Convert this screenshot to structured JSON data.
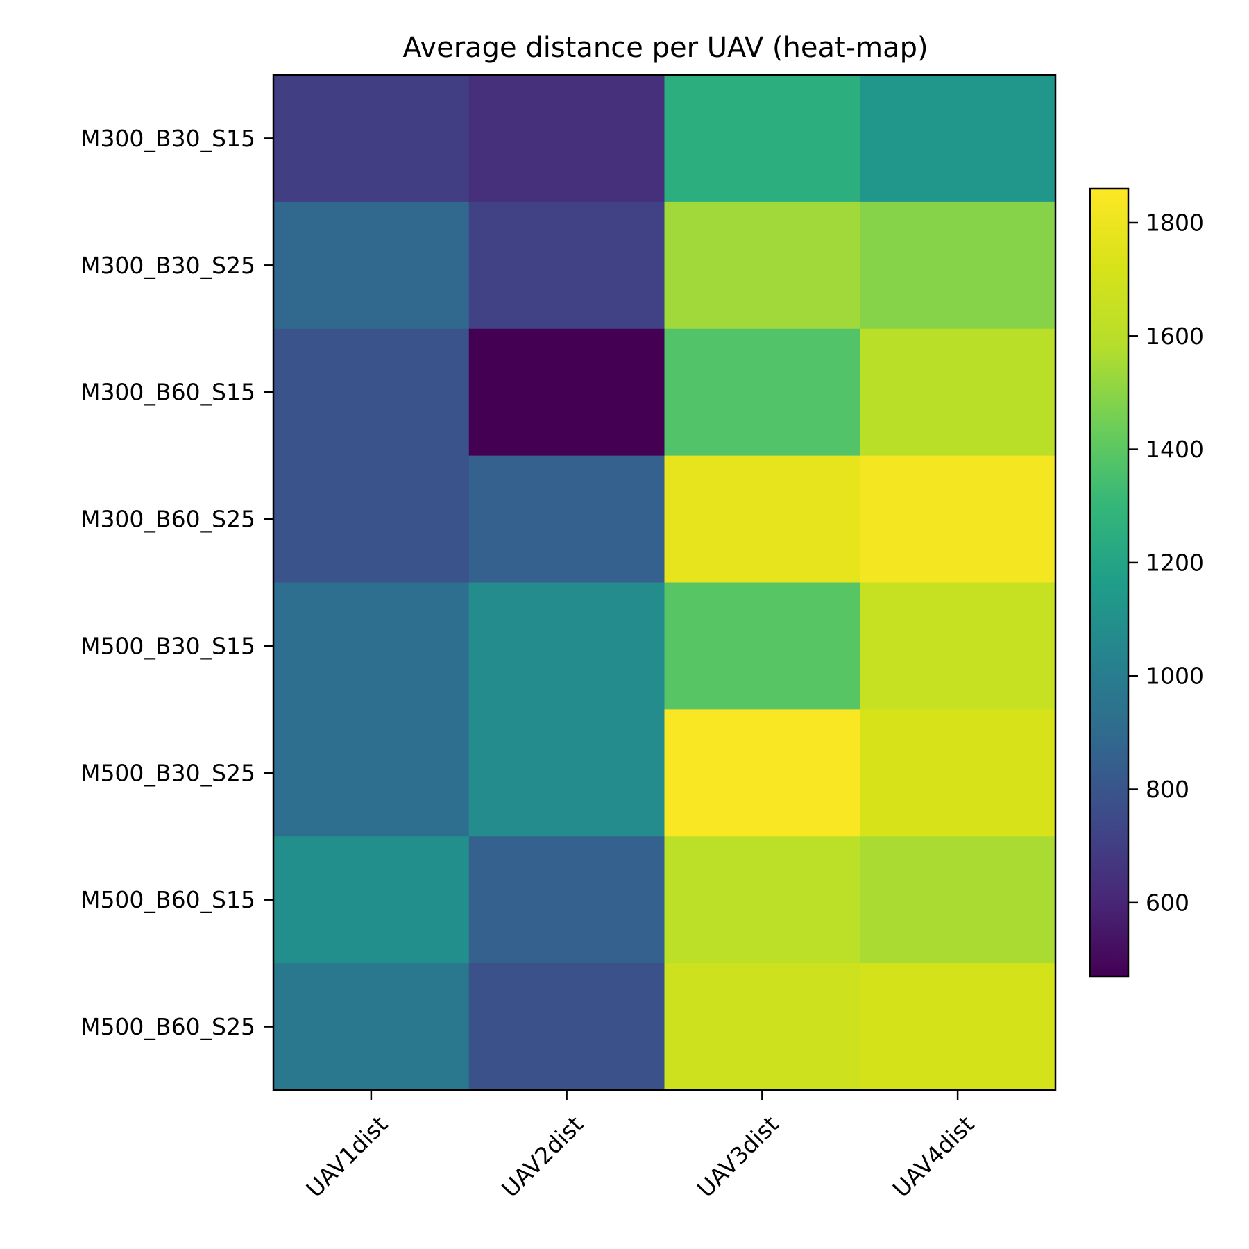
{
  "chart_data": {
    "type": "heatmap",
    "title": "Average distance per UAV (heat-map)",
    "xlabel": "",
    "ylabel": "",
    "x_categories": [
      "UAV1dist",
      "UAV2dist",
      "UAV3dist",
      "UAV4dist"
    ],
    "y_categories": [
      "M300_B30_S15",
      "M300_B30_S25",
      "M300_B60_S15",
      "M300_B60_S25",
      "M500_B30_S15",
      "M500_B30_S25",
      "M500_B60_S15",
      "M500_B60_S25"
    ],
    "values": [
      [
        700,
        640,
        1255,
        1125
      ],
      [
        890,
        715,
        1540,
        1490
      ],
      [
        790,
        470,
        1375,
        1600
      ],
      [
        790,
        855,
        1780,
        1830
      ],
      [
        920,
        1075,
        1390,
        1650
      ],
      [
        920,
        1075,
        1850,
        1725
      ],
      [
        1090,
        855,
        1610,
        1560
      ],
      [
        975,
        780,
        1685,
        1710
      ]
    ],
    "colormap": "viridis",
    "colorbar": {
      "min": 470,
      "max": 1860,
      "ticks": [
        600,
        800,
        1000,
        1200,
        1400,
        1600,
        1800
      ],
      "tick_labels": [
        "600",
        "800",
        "1000",
        "1200",
        "1400",
        "1600",
        "1800"
      ]
    },
    "grid": false,
    "legend": "none"
  }
}
